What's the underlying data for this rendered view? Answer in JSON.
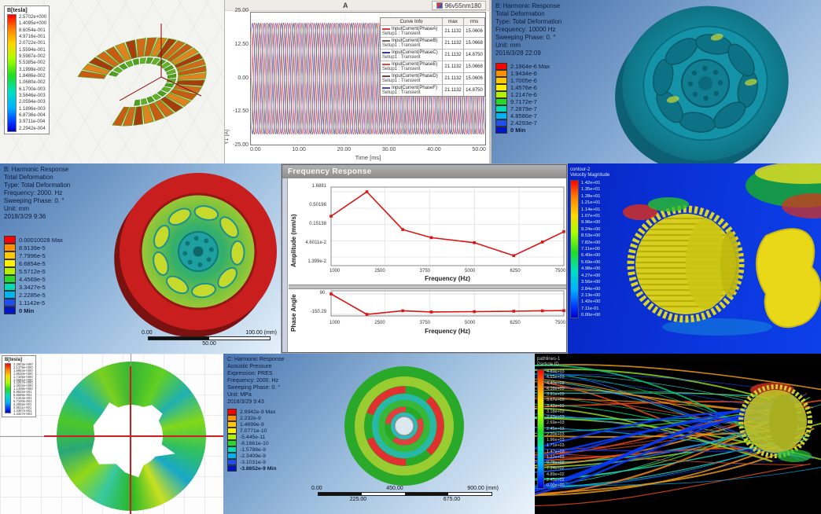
{
  "panel_a": {
    "legend_title": "B[tesla]",
    "values": [
      "2.5702e+000",
      "1.4095e+000",
      "8.6054e-001",
      "4.9716e-001",
      "2.0722e-001",
      "1.5594e-001",
      "9.5987e-002",
      "5.5385e-002",
      "3.1998e-002",
      "1.8486e-002",
      "1.0680e-002",
      "6.1700e-003",
      "3.5646e-003",
      "2.0594e-003",
      "1.1896e-003",
      "6.8736e-004",
      "3.9711e-004",
      "2.2942e-004"
    ]
  },
  "panel_b": {
    "tab_label": "96v55nm180",
    "plot_title": "A",
    "xlabel": "Time [ms]",
    "ylabel": "Y1 [A]",
    "xticks": [
      "0.00",
      "10.00",
      "20.00",
      "30.00",
      "40.00",
      "50.00"
    ],
    "yticks": [
      "25.00",
      "12.50",
      "0.00",
      "-12.50",
      "-25.00"
    ],
    "table": {
      "headers": [
        "Curve Info",
        "max",
        "rms"
      ],
      "rows": [
        {
          "name": "InputCurrent(PhaseA)",
          "setup": "Setup1 : Transient",
          "max": "21.1132",
          "rms": "15.0606",
          "color": "#d23c3c"
        },
        {
          "name": "InputCurrent(PhaseB)",
          "setup": "Setup1 : Transient",
          "max": "21.1132",
          "rms": "15.0668",
          "color": "#7a6060"
        },
        {
          "name": "InputCurrent(PhaseC)",
          "setup": "Setup1 : Transient",
          "max": "21.1132",
          "rms": "14.8750",
          "color": "#3a3a90"
        },
        {
          "name": "InputCurrent(PhaseE)",
          "setup": "Setup1 : Transient",
          "max": "21.1132",
          "rms": "15.0668",
          "color": "#e04848"
        },
        {
          "name": "InputCurrent(PhaseD)",
          "setup": "Setup1 : Transient",
          "max": "21.1132",
          "rms": "15.0606",
          "color": "#6a4343"
        },
        {
          "name": "InputCurrent(PhaseF)",
          "setup": "Setup1 : Transient",
          "max": "21.1132",
          "rms": "14.8750",
          "color": "#4646c4"
        }
      ]
    }
  },
  "panel_c": {
    "header": [
      "B: Harmonic Response",
      "Total Deformation",
      "Type: Total Deformation",
      "Frequency: 10000 Hz",
      "Sweeping Phase: 0. °",
      "Unit: mm",
      "2016/3/28 22:09"
    ],
    "legend": [
      {
        "c": "#ff0000",
        "v": "2.1864e-6 Max"
      },
      {
        "c": "#ff9100",
        "v": "1.9434e-6"
      },
      {
        "c": "#ffc800",
        "v": "1.7005e-6"
      },
      {
        "c": "#fff000",
        "v": "1.4576e-6"
      },
      {
        "c": "#b4f000",
        "v": "1.2147e-6"
      },
      {
        "c": "#28d828",
        "v": "9.7172e-7"
      },
      {
        "c": "#00dcb4",
        "v": "7.2879e-7"
      },
      {
        "c": "#00b4f0",
        "v": "4.8586e-7"
      },
      {
        "c": "#1e50f0",
        "v": "2.4293e-7"
      },
      {
        "c": "#0014c8",
        "v": "0 Min"
      }
    ]
  },
  "panel_d": {
    "header": [
      "B: Harmonic Response",
      "Total Deformation",
      "Type: Total Deformation",
      "Frequency: 2000. Hz",
      "Sweeping Phase: 0. °",
      "Unit: mm",
      "2018/3/29 9:36"
    ],
    "legend": [
      {
        "c": "#ff0000",
        "v": "0.00010028 Max"
      },
      {
        "c": "#ff9100",
        "v": "8.9139e-5"
      },
      {
        "c": "#ffc800",
        "v": "7.7996e-5"
      },
      {
        "c": "#fff000",
        "v": "6.6854e-5"
      },
      {
        "c": "#b4f000",
        "v": "5.5712e-5"
      },
      {
        "c": "#28d828",
        "v": "4.4569e-5"
      },
      {
        "c": "#00dcb4",
        "v": "3.3427e-5"
      },
      {
        "c": "#00b4f0",
        "v": "2.2285e-5"
      },
      {
        "c": "#1e50f0",
        "v": "1.1142e-5"
      },
      {
        "c": "#0014c8",
        "v": "0 Min"
      }
    ],
    "scale": {
      "left": "0.00",
      "right": "100.00 (mm)",
      "mid": "50.00"
    }
  },
  "panel_e": {
    "title": "Frequency Response",
    "amp_ylabel": "Amplitude (mm/s)",
    "phase_ylabel": "Phase Angle",
    "xlabel": "Frequency (Hz)",
    "amp_yticks": [
      "1.6881",
      "0.50198",
      "0.15138",
      "4.6011e-2",
      "1.399e-2"
    ],
    "phase_yticks": [
      "90.",
      "-150.29"
    ],
    "xticks": [
      "1000",
      "2500",
      "3750",
      "5000",
      "6250",
      "7500"
    ]
  },
  "panel_f": {
    "legend_title": "contour-2",
    "legend_subtitle": "Velocity Magnitude",
    "values": [
      "1.42e+01",
      "1.35e+01",
      "1.28e+01",
      "1.21e+01",
      "1.14e+01",
      "1.07e+01",
      "9.96e+00",
      "9.24e+00",
      "8.53e+00",
      "7.82e+00",
      "7.11e+00",
      "6.40e+00",
      "5.69e+00",
      "4.98e+00",
      "4.27e+00",
      "3.56e+00",
      "2.84e+00",
      "2.13e+00",
      "1.42e+00",
      "7.11e-01",
      "0.00e+00"
    ]
  },
  "panel_g": {
    "legend_title": "B[tesla]",
    "values": [
      "2.2803e+000",
      "2.1379e+000",
      "1.9954e+000",
      "1.8530e+000",
      "1.7105e+000",
      "1.5681e+000",
      "1.4257e+000",
      "1.2832e+000",
      "1.1408e+000",
      "9.9832e-001",
      "8.5588e-001",
      "7.1344e-001",
      "5.7100e-001",
      "4.2855e-001",
      "2.8611e-001",
      "1.4367e-001",
      "1.3327e-003"
    ]
  },
  "panel_h": {
    "header": [
      "C: Harmonic Response",
      "Acoustic Pressure",
      "Expression: PRES",
      "Frequency: 2000. Hz",
      "Sweeping Phase: 0. °",
      "Unit: MPa",
      "2018/3/29 9:43"
    ],
    "legend": [
      {
        "c": "#ff0000",
        "v": "2.9942e-9 Max"
      },
      {
        "c": "#ff9100",
        "v": "2.232e-9"
      },
      {
        "c": "#ffc800",
        "v": "1.4699e-9"
      },
      {
        "c": "#fff000",
        "v": "7.0771e-10"
      },
      {
        "c": "#b4f000",
        "v": "-5.445e-11"
      },
      {
        "c": "#28d828",
        "v": "-8.1661e-10"
      },
      {
        "c": "#00dcb4",
        "v": "-1.5788e-9"
      },
      {
        "c": "#00b4f0",
        "v": "-2.3409e-9"
      },
      {
        "c": "#1e50f0",
        "v": "-3.1031e-9"
      },
      {
        "c": "#0014c8",
        "v": "-3.8652e-9 Min"
      }
    ],
    "scale": {
      "left": "0.00",
      "mid": "450.00",
      "right": "900.00 (mm)",
      "q1": "225.00",
      "q3": "675.00"
    }
  },
  "panel_i": {
    "legend_title": "pathlines-1",
    "legend_subtitle": "Particle ID",
    "values": [
      "4.89e+03",
      "4.65e+03",
      "4.40e+03",
      "4.16e+03",
      "3.91e+03",
      "3.67e+03",
      "3.42e+03",
      "3.18e+03",
      "2.93e+03",
      "2.69e+03",
      "2.45e+03",
      "2.20e+03",
      "1.96e+03",
      "1.71e+03",
      "1.47e+03",
      "1.22e+03",
      "9.78e+02",
      "7.34e+02",
      "4.89e+02",
      "2.45e+02",
      "0.00e+00"
    ]
  },
  "chart_data": [
    {
      "type": "line",
      "title": "A",
      "xlabel": "Time [ms]",
      "ylabel": "Y1 [A]",
      "xlim": [
        0,
        50
      ],
      "ylim": [
        -25,
        25
      ],
      "amplitude": 21.1132,
      "period_ms": 2.5,
      "series": [
        {
          "name": "InputCurrent(PhaseA)",
          "phase_deg": 0,
          "color": "#d23c3c",
          "max": 21.1132,
          "rms": 15.0606
        },
        {
          "name": "InputCurrent(PhaseB)",
          "phase_deg": -60,
          "color": "#7a6060",
          "max": 21.1132,
          "rms": 15.0668
        },
        {
          "name": "InputCurrent(PhaseC)",
          "phase_deg": -120,
          "color": "#3a3a90",
          "max": 21.1132,
          "rms": 14.875
        },
        {
          "name": "InputCurrent(PhaseD)",
          "phase_deg": -180,
          "color": "#6a4343",
          "max": 21.1132,
          "rms": 15.0606
        },
        {
          "name": "InputCurrent(PhaseE)",
          "phase_deg": -240,
          "color": "#e04848",
          "max": 21.1132,
          "rms": 15.0668
        },
        {
          "name": "InputCurrent(PhaseF)",
          "phase_deg": -300,
          "color": "#4646c4",
          "max": 21.1132,
          "rms": 14.875
        }
      ]
    },
    {
      "type": "line",
      "title": "Frequency Response - Amplitude",
      "xlabel": "Frequency (Hz)",
      "ylabel": "Amplitude (mm/s)",
      "yscale": "log",
      "xlim": [
        1000,
        7500
      ],
      "x": [
        1000,
        2000,
        3000,
        3800,
        5000,
        6100,
        6900,
        7500
      ],
      "y": [
        0.28,
        1.6881,
        0.105,
        0.058,
        0.04,
        0.0155,
        0.042,
        0.09
      ],
      "yticks": [
        1.6881,
        0.50198,
        0.15138,
        0.046011,
        0.01399
      ],
      "xticks": [
        1000,
        2500,
        3750,
        5000,
        6250,
        7500
      ],
      "color": "#dc1414"
    },
    {
      "type": "line",
      "title": "Frequency Response - Phase",
      "xlabel": "Frequency (Hz)",
      "ylabel": "Phase Angle",
      "ylim": [
        -150.29,
        90
      ],
      "x": [
        1000,
        2000,
        3000,
        3800,
        5000,
        6100,
        6900,
        7500
      ],
      "y": [
        90,
        -150.29,
        -108,
        -122,
        -118,
        -113,
        -108,
        -106
      ],
      "yticks": [
        90,
        -150.29
      ],
      "xticks": [
        1000,
        2500,
        3750,
        5000,
        6250,
        7500
      ],
      "color": "#dc1414"
    }
  ]
}
